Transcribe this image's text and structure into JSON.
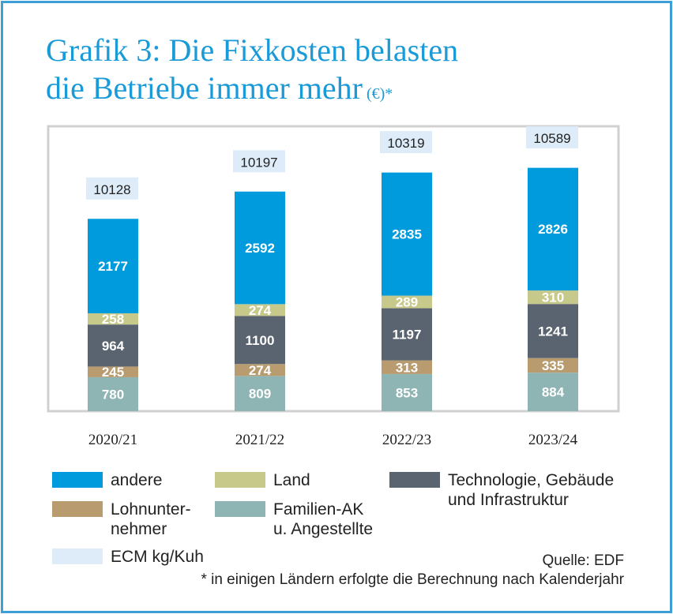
{
  "title": {
    "line1": "Grafik 3: Die Fixkosten belasten",
    "line2": "die Betriebe immer mehr",
    "unit": " (€)*"
  },
  "chart_data": {
    "type": "bar",
    "stacked": true,
    "categories": [
      "2020/21",
      "2021/22",
      "2022/23",
      "2023/24"
    ],
    "series": [
      {
        "name": "Familien-AK u. Angestellte",
        "color": "#8fb4b4",
        "values": [
          780,
          809,
          853,
          884
        ]
      },
      {
        "name": "Lohnunternehmer",
        "color": "#b89b6e",
        "values": [
          245,
          274,
          313,
          335
        ]
      },
      {
        "name": "Technologie, Gebäude und Infrastruktur",
        "color": "#5a6370",
        "values": [
          964,
          1100,
          1197,
          1241
        ]
      },
      {
        "name": "Land",
        "color": "#c7c98a",
        "values": [
          258,
          274,
          289,
          310
        ]
      },
      {
        "name": "andere",
        "color": "#009bdc",
        "values": [
          2177,
          2592,
          2835,
          2826
        ]
      }
    ],
    "annotation_series": {
      "name": "ECM kg/Kuh",
      "color": "#ddecf8",
      "values": [
        10128,
        10197,
        10319,
        10589
      ]
    },
    "grid": false
  },
  "legend": [
    {
      "label": "andere",
      "color": "#009bdc"
    },
    {
      "label": "Land",
      "color": "#c7c98a"
    },
    {
      "label": "Technologie, Gebäude\nund Infrastruktur",
      "color": "#5a6370"
    },
    {
      "label": "Lohnunter-\nnehmer",
      "color": "#b89b6e"
    },
    {
      "label": "Familien-AK\nu. Angestellte",
      "color": "#8fb4b4"
    },
    {
      "label": "ECM kg/Kuh",
      "color": "#ddecf8"
    }
  ],
  "source": "Quelle: EDF",
  "footnote": "* in einigen Ländern erfolgte die Berechnung nach Kalenderjahr"
}
